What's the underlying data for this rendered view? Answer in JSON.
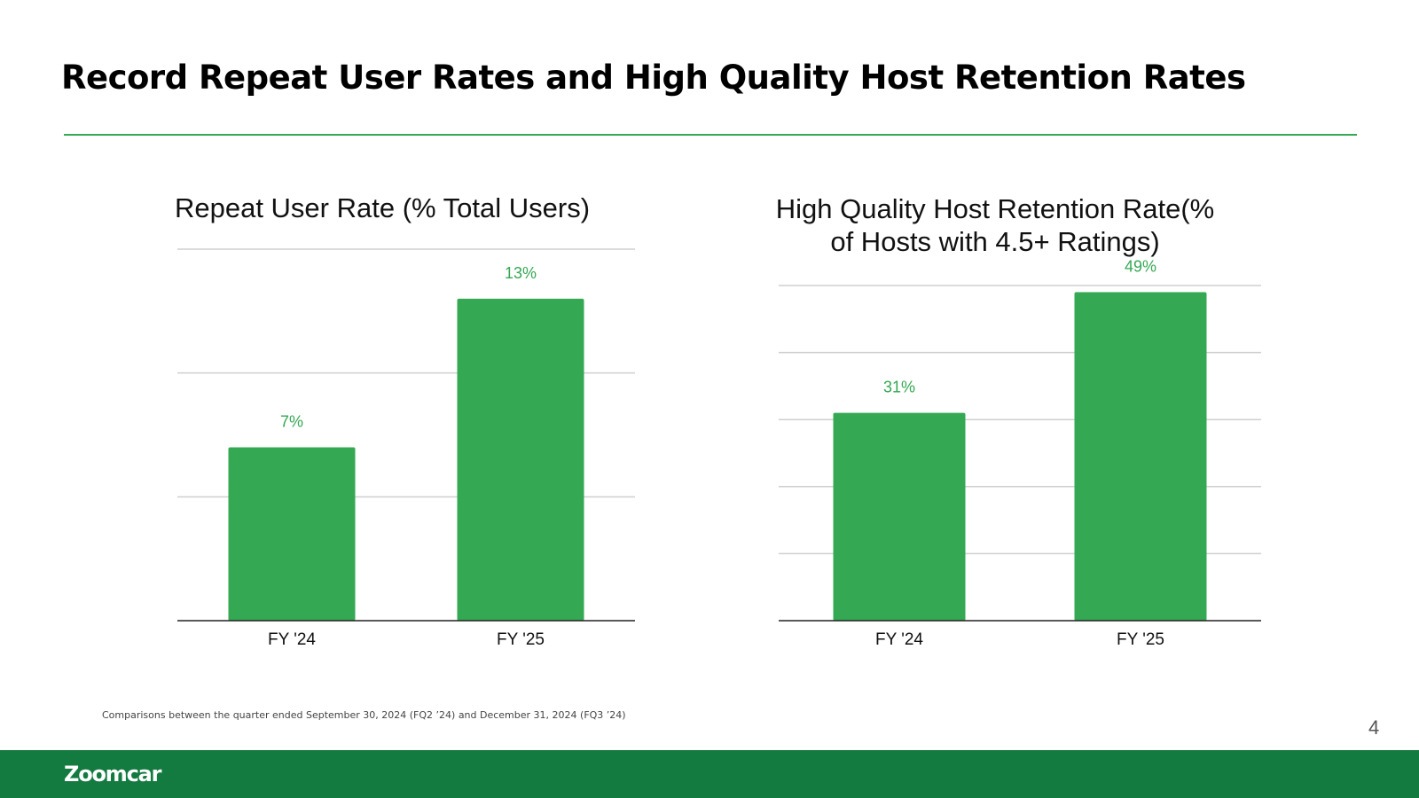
{
  "slide": {
    "title": "Record Repeat User Rates and High Quality Host Retention Rates",
    "footnote": "Comparisons between the quarter ended September 30, 2024 (FQ2 ’24) and December 31, 2024 (FQ3 ’24)",
    "page_number": "4",
    "logo_text": "Zoomcar"
  },
  "colors": {
    "accent": "#34a853",
    "footer": "#137a40"
  },
  "chart_data": [
    {
      "type": "bar",
      "title": "Repeat User Rate (% Total Users)",
      "categories": [
        "FY '24",
        "FY '25"
      ],
      "values": [
        7,
        13
      ],
      "value_labels": [
        "7%",
        "13%"
      ],
      "xlabel": "",
      "ylabel": "",
      "ylim": [
        0,
        15
      ],
      "gridlines": [
        5,
        10,
        15
      ],
      "grid": true,
      "legend": "none"
    },
    {
      "type": "bar",
      "title": "High Quality Host Retention Rate(% of Hosts with 4.5+ Ratings)",
      "title_lines": [
        "High Quality Host Retention Rate(%",
        "of Hosts with 4.5+ Ratings)"
      ],
      "categories": [
        "FY '24",
        "FY '25"
      ],
      "values": [
        31,
        49
      ],
      "value_labels": [
        "31%",
        "49%"
      ],
      "xlabel": "",
      "ylabel": "",
      "ylim": [
        0,
        50
      ],
      "gridlines": [
        10,
        20,
        30,
        40,
        50
      ],
      "grid": true,
      "legend": "none"
    }
  ]
}
